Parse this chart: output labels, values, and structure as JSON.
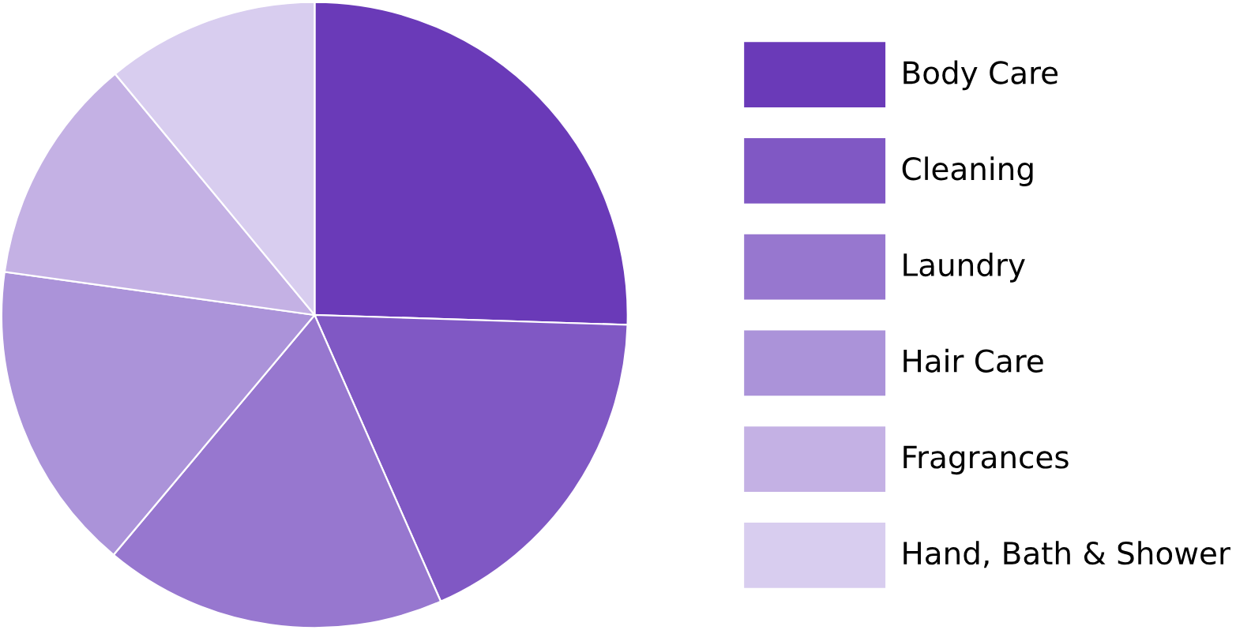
{
  "chart_data": {
    "type": "pie",
    "categories": [
      "Body Care",
      "Cleaning",
      "Laundry",
      "Hair Care",
      "Fragrances",
      "Hand, Bath & Shower"
    ],
    "values": [
      25.5,
      17.9,
      17.7,
      16.1,
      11.8,
      11.0
    ],
    "colors": [
      "#6a3ab8",
      "#8058c4",
      "#9777cf",
      "#ab93d9",
      "#c4b1e4",
      "#d8cdef"
    ],
    "legend": "right"
  }
}
